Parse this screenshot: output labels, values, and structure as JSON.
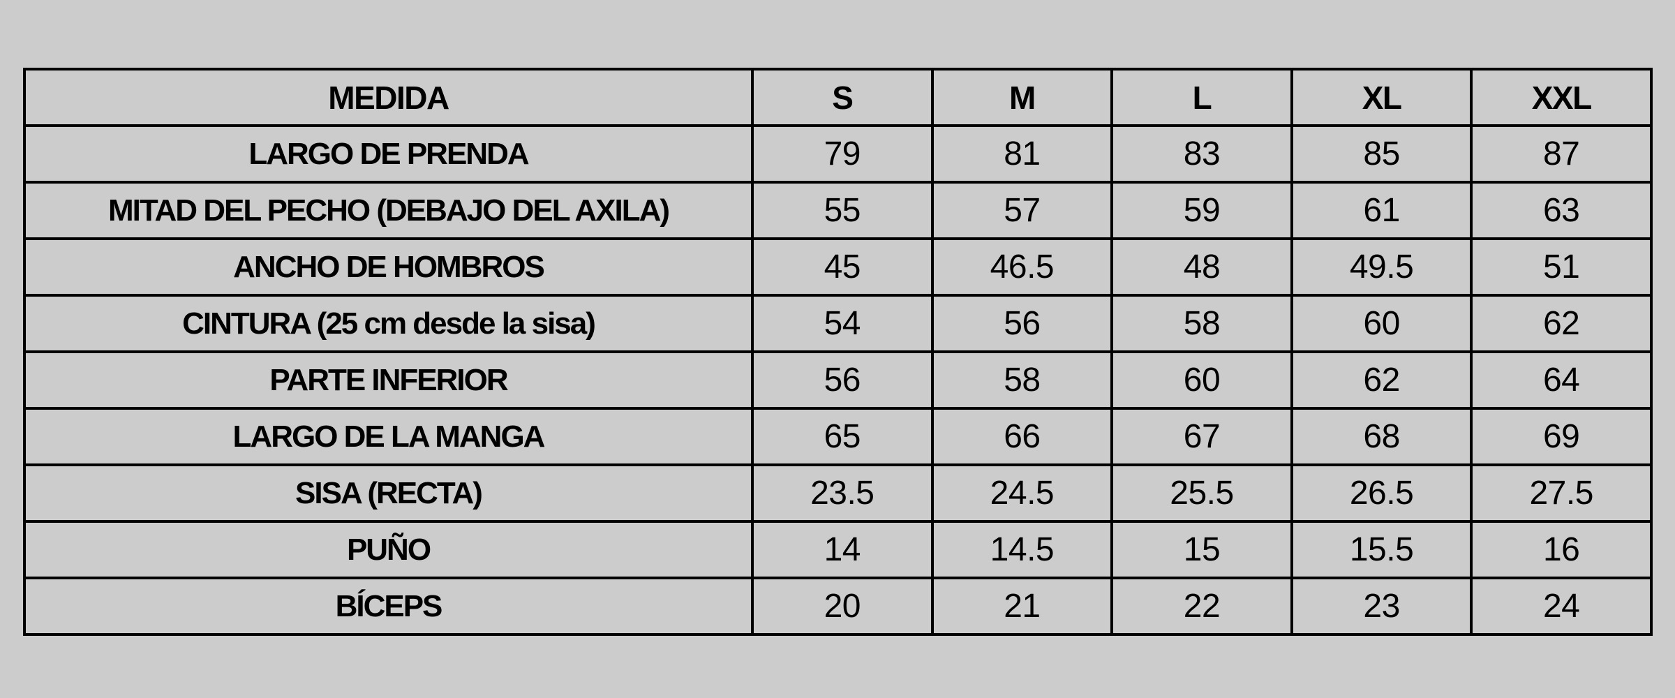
{
  "table": {
    "headers": [
      "MEDIDA",
      "S",
      "M",
      "L",
      "XL",
      "XXL"
    ],
    "rows": [
      {
        "label": "LARGO DE PRENDA",
        "values": [
          "79",
          "81",
          "83",
          "85",
          "87"
        ]
      },
      {
        "label": "MITAD DEL PECHO (DEBAJO DEL AXILA)",
        "values": [
          "55",
          "57",
          "59",
          "61",
          "63"
        ]
      },
      {
        "label": "ANCHO DE HOMBROS",
        "values": [
          "45",
          "46.5",
          "48",
          "49.5",
          "51"
        ]
      },
      {
        "label": "CINTURA (25 cm desde la sisa)",
        "values": [
          "54",
          "56",
          "58",
          "60",
          "62"
        ]
      },
      {
        "label": "PARTE INFERIOR",
        "values": [
          "56",
          "58",
          "60",
          "62",
          "64"
        ]
      },
      {
        "label": "LARGO DE LA MANGA",
        "values": [
          "65",
          "66",
          "67",
          "68",
          "69"
        ]
      },
      {
        "label": "SISA (RECTA)",
        "values": [
          "23.5",
          "24.5",
          "25.5",
          "26.5",
          "27.5"
        ]
      },
      {
        "label": "PUÑO",
        "values": [
          "14",
          "14.5",
          "15",
          "15.5",
          "16"
        ]
      },
      {
        "label": "BÍCEPS",
        "values": [
          "20",
          "21",
          "22",
          "23",
          "24"
        ]
      }
    ]
  }
}
